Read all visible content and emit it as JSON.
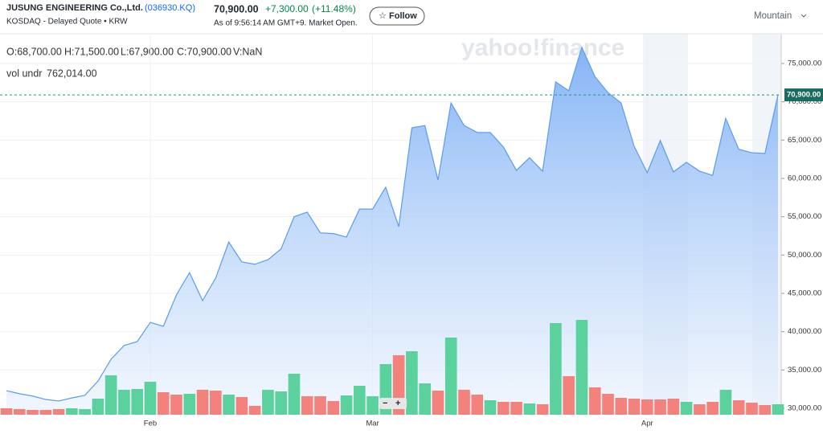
{
  "header": {
    "name": "JUSUNG ENGINEERING Co.,Ltd.",
    "symbol": "(036930.KQ)",
    "exchange": "KOSDAQ - Delayed Quote • KRW",
    "price": "70,900.00",
    "change": "+7,300.00",
    "change_pct": "(+11.48%)",
    "as_of": "As of 9:56:14 AM GMT+9. Market Open.",
    "follow": "Follow",
    "chart_style": "Mountain"
  },
  "ohlc": {
    "open": "O:68,700.00",
    "high": "H:71,500.00",
    "low": "L:67,900.00",
    "close": "C:70,900.00",
    "volume": "V:NaN"
  },
  "indicator": {
    "label": "vol undr",
    "value": "762,014.00"
  },
  "watermark": "yahoo!finance",
  "zoom": {
    "out": "−",
    "in": "+"
  },
  "chart_data": {
    "type": "area",
    "categories": [
      null,
      null,
      null,
      null,
      null,
      null,
      null,
      null,
      null,
      null,
      null,
      "Feb",
      null,
      null,
      null,
      null,
      null,
      null,
      null,
      null,
      null,
      null,
      null,
      null,
      null,
      null,
      null,
      null,
      "Mar",
      null,
      null,
      null,
      null,
      null,
      null,
      null,
      null,
      null,
      null,
      null,
      null,
      null,
      null,
      null,
      null,
      null,
      null,
      null,
      null,
      "Apr",
      null,
      null,
      null,
      null,
      null,
      null,
      null,
      null,
      null,
      null
    ],
    "series": [
      {
        "name": "Price",
        "color": "#5a9cf0",
        "values": [
          32300,
          31900,
          31600,
          31150,
          30950,
          31350,
          31700,
          33550,
          36400,
          38200,
          38700,
          41200,
          40700,
          44800,
          47700,
          44050,
          47000,
          51700,
          49100,
          48800,
          49400,
          50800,
          55000,
          55600,
          52900,
          52800,
          52350,
          56000,
          56000,
          58850,
          53700,
          66600,
          66900,
          59800,
          69850,
          66900,
          66000,
          66000,
          64100,
          61050,
          62700,
          60950,
          72600,
          71450,
          77100,
          73300,
          71200,
          69850,
          64200,
          60750,
          64950,
          60850,
          62100,
          60950,
          60400,
          67850,
          63800,
          63350,
          63250,
          70900
        ]
      }
    ],
    "volume": {
      "values": [
        508000,
        445000,
        381000,
        381000,
        445000,
        508000,
        445000,
        1270000,
        3112000,
        1969000,
        2032000,
        2604000,
        1778000,
        1588000,
        1651000,
        1969000,
        1905000,
        1588000,
        1397000,
        699000,
        1969000,
        1842000,
        3239000,
        1461000,
        1461000,
        1080000,
        1524000,
        2286000,
        1461000,
        4001000,
        4699000,
        5017000,
        2477000,
        1905000,
        6096000,
        1969000,
        1588000,
        1143000,
        1016000,
        1016000,
        889000,
        826000,
        7239000,
        3048000,
        7493000,
        2159000,
        1651000,
        1334000,
        1270000,
        1207000,
        1207000,
        1270000,
        1016000,
        826000,
        1016000,
        1969000,
        1143000,
        953000,
        762000,
        826000
      ],
      "colors": [
        "#f4827c",
        "#f4827c",
        "#f4827c",
        "#f4827c",
        "#f4827c",
        "#5bd19e",
        "#5bd19e",
        "#5bd19e",
        "#5bd19e",
        "#5bd19e",
        "#5bd19e",
        "#5bd19e",
        "#f4827c",
        "#f4827c",
        "#5bd19e",
        "#f4827c",
        "#f4827c",
        "#5bd19e",
        "#f4827c",
        "#f4827c",
        "#5bd19e",
        "#5bd19e",
        "#5bd19e",
        "#f4827c",
        "#f4827c",
        "#f4827c",
        "#5bd19e",
        "#5bd19e",
        "#5bd19e",
        "#5bd19e",
        "#f4827c",
        "#5bd19e",
        "#5bd19e",
        "#f4827c",
        "#5bd19e",
        "#f4827c",
        "#f4827c",
        "#5bd19e",
        "#f4827c",
        "#f4827c",
        "#5bd19e",
        "#f4827c",
        "#5bd19e",
        "#f4827c",
        "#5bd19e",
        "#f4827c",
        "#f4827c",
        "#f4827c",
        "#f4827c",
        "#f4827c",
        "#f4827c",
        "#f4827c",
        "#5bd19e",
        "#f4827c",
        "#f4827c",
        "#5bd19e",
        "#f4827c",
        "#f4827c",
        "#f4827c",
        "#5bd19e"
      ]
    },
    "current": {
      "value": 70900,
      "label": "70,900.00"
    },
    "ylim": [
      29160,
      78880
    ],
    "yticks": [
      {
        "value": 30000,
        "label": "30,000.00"
      },
      {
        "value": 35000,
        "label": "35,000.00"
      },
      {
        "value": 40000,
        "label": "40,000.00"
      },
      {
        "value": 45000,
        "label": "45,000.00"
      },
      {
        "value": 50000,
        "label": "50,000.00"
      },
      {
        "value": 55000,
        "label": "55,000.00"
      },
      {
        "value": 60000,
        "label": "60,000.00"
      },
      {
        "value": 65000,
        "label": "65,000.00"
      },
      {
        "value": 70000,
        "label": "70,000.00"
      },
      {
        "value": 75000,
        "label": "75,000.00"
      }
    ],
    "grid": true
  }
}
